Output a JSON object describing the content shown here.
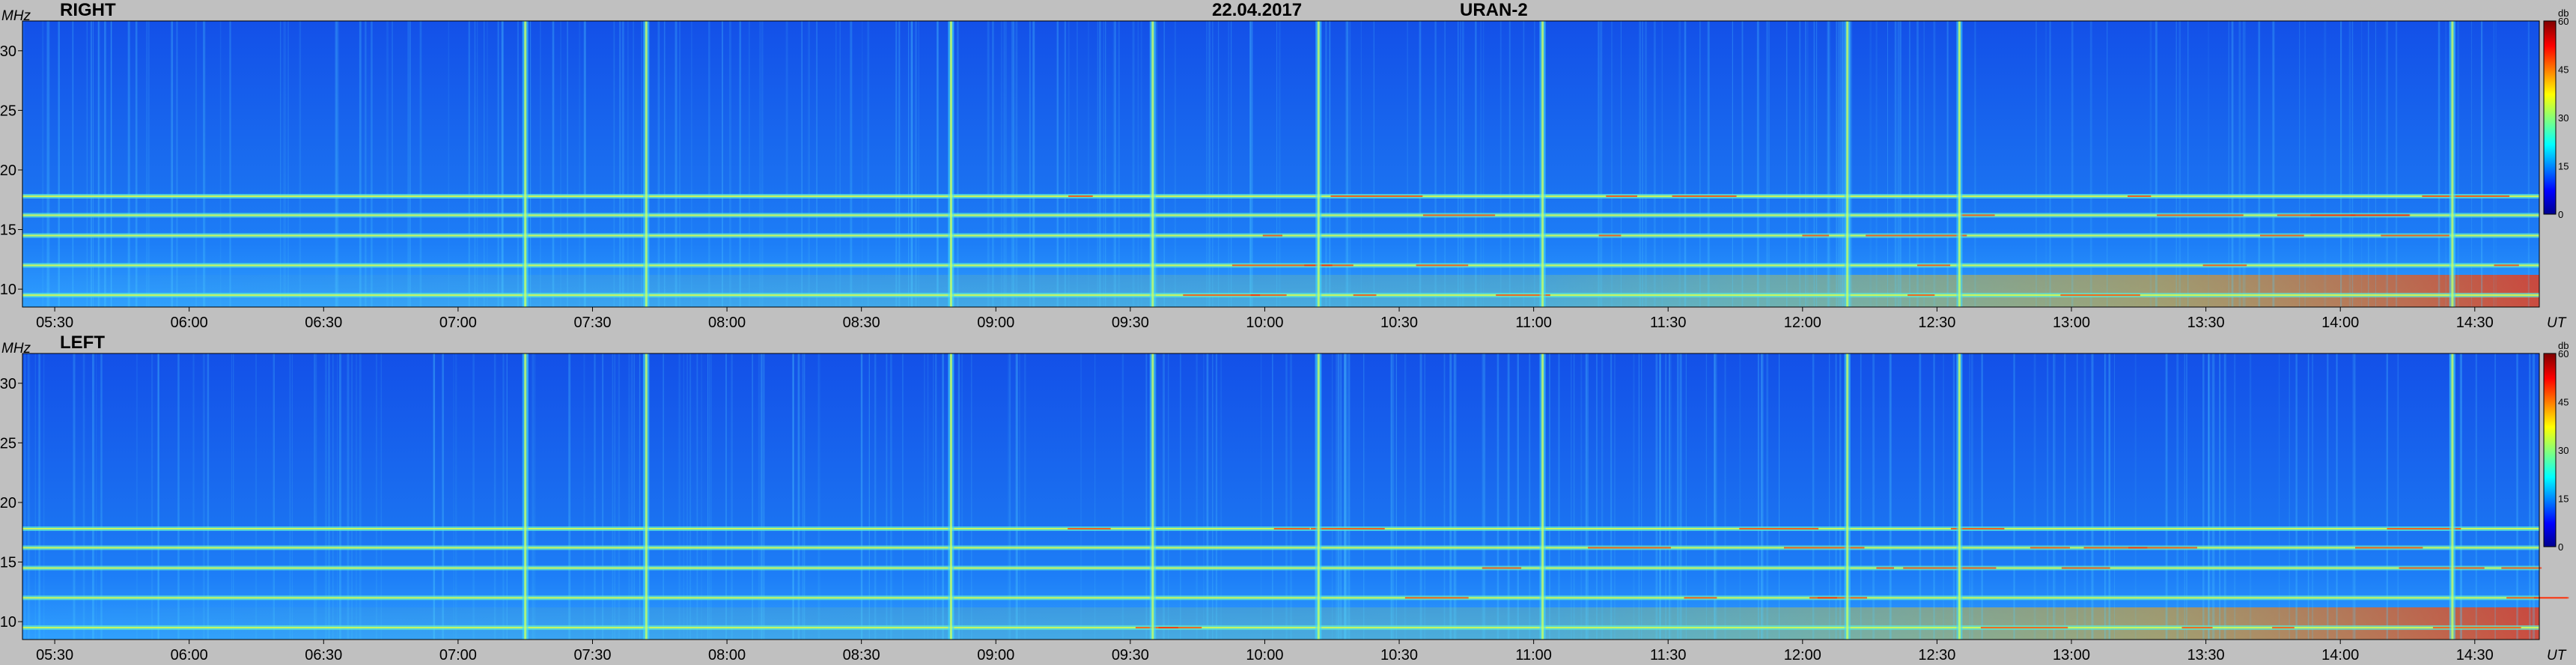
{
  "header": {
    "date": "22.04.2017",
    "instrument": "URAN-2"
  },
  "chart_data": [
    {
      "type": "heatmap",
      "title": "RIGHT",
      "ylabel": "MHz",
      "xlabel": "UT",
      "y_ticks": [
        10,
        15,
        20,
        25,
        30
      ],
      "ylim": [
        8.5,
        32.5
      ],
      "x_ticks": [
        "05:30",
        "06:00",
        "06:30",
        "07:00",
        "07:30",
        "08:00",
        "08:30",
        "09:00",
        "09:30",
        "10:00",
        "10:30",
        "11:00",
        "11:30",
        "12:00",
        "12:30",
        "13:00",
        "13:30",
        "14:00",
        "14:30"
      ],
      "xlim_hours": [
        5.38,
        14.74
      ],
      "colorbar": {
        "label": "db",
        "ticks": [
          0,
          15,
          30,
          45,
          60
        ],
        "range": [
          0,
          60
        ]
      },
      "bright_bursts_ut": [
        "07:15",
        "07:42",
        "08:50",
        "09:35",
        "10:12",
        "11:02",
        "12:10",
        "12:35",
        "14:25"
      ],
      "steady_bands_mhz": [
        9.5,
        12,
        14.5,
        16.2,
        17.8
      ]
    },
    {
      "type": "heatmap",
      "title": "LEFT",
      "ylabel": "MHz",
      "xlabel": "UT",
      "y_ticks": [
        10,
        15,
        20,
        25,
        30
      ],
      "ylim": [
        8.5,
        32.5
      ],
      "x_ticks": [
        "05:30",
        "06:00",
        "06:30",
        "07:00",
        "07:30",
        "08:00",
        "08:30",
        "09:00",
        "09:30",
        "10:00",
        "10:30",
        "11:00",
        "11:30",
        "12:00",
        "12:30",
        "13:00",
        "13:30",
        "14:00",
        "14:30"
      ],
      "xlim_hours": [
        5.38,
        14.74
      ],
      "colorbar": {
        "label": "db",
        "ticks": [
          0,
          15,
          30,
          45,
          60
        ],
        "range": [
          0,
          60
        ]
      },
      "bright_bursts_ut": [
        "07:15",
        "07:42",
        "08:50",
        "09:35",
        "10:12",
        "11:02",
        "12:10",
        "12:35",
        "14:25"
      ],
      "steady_bands_mhz": [
        9.5,
        12,
        14.5,
        16.2,
        17.8
      ]
    }
  ]
}
